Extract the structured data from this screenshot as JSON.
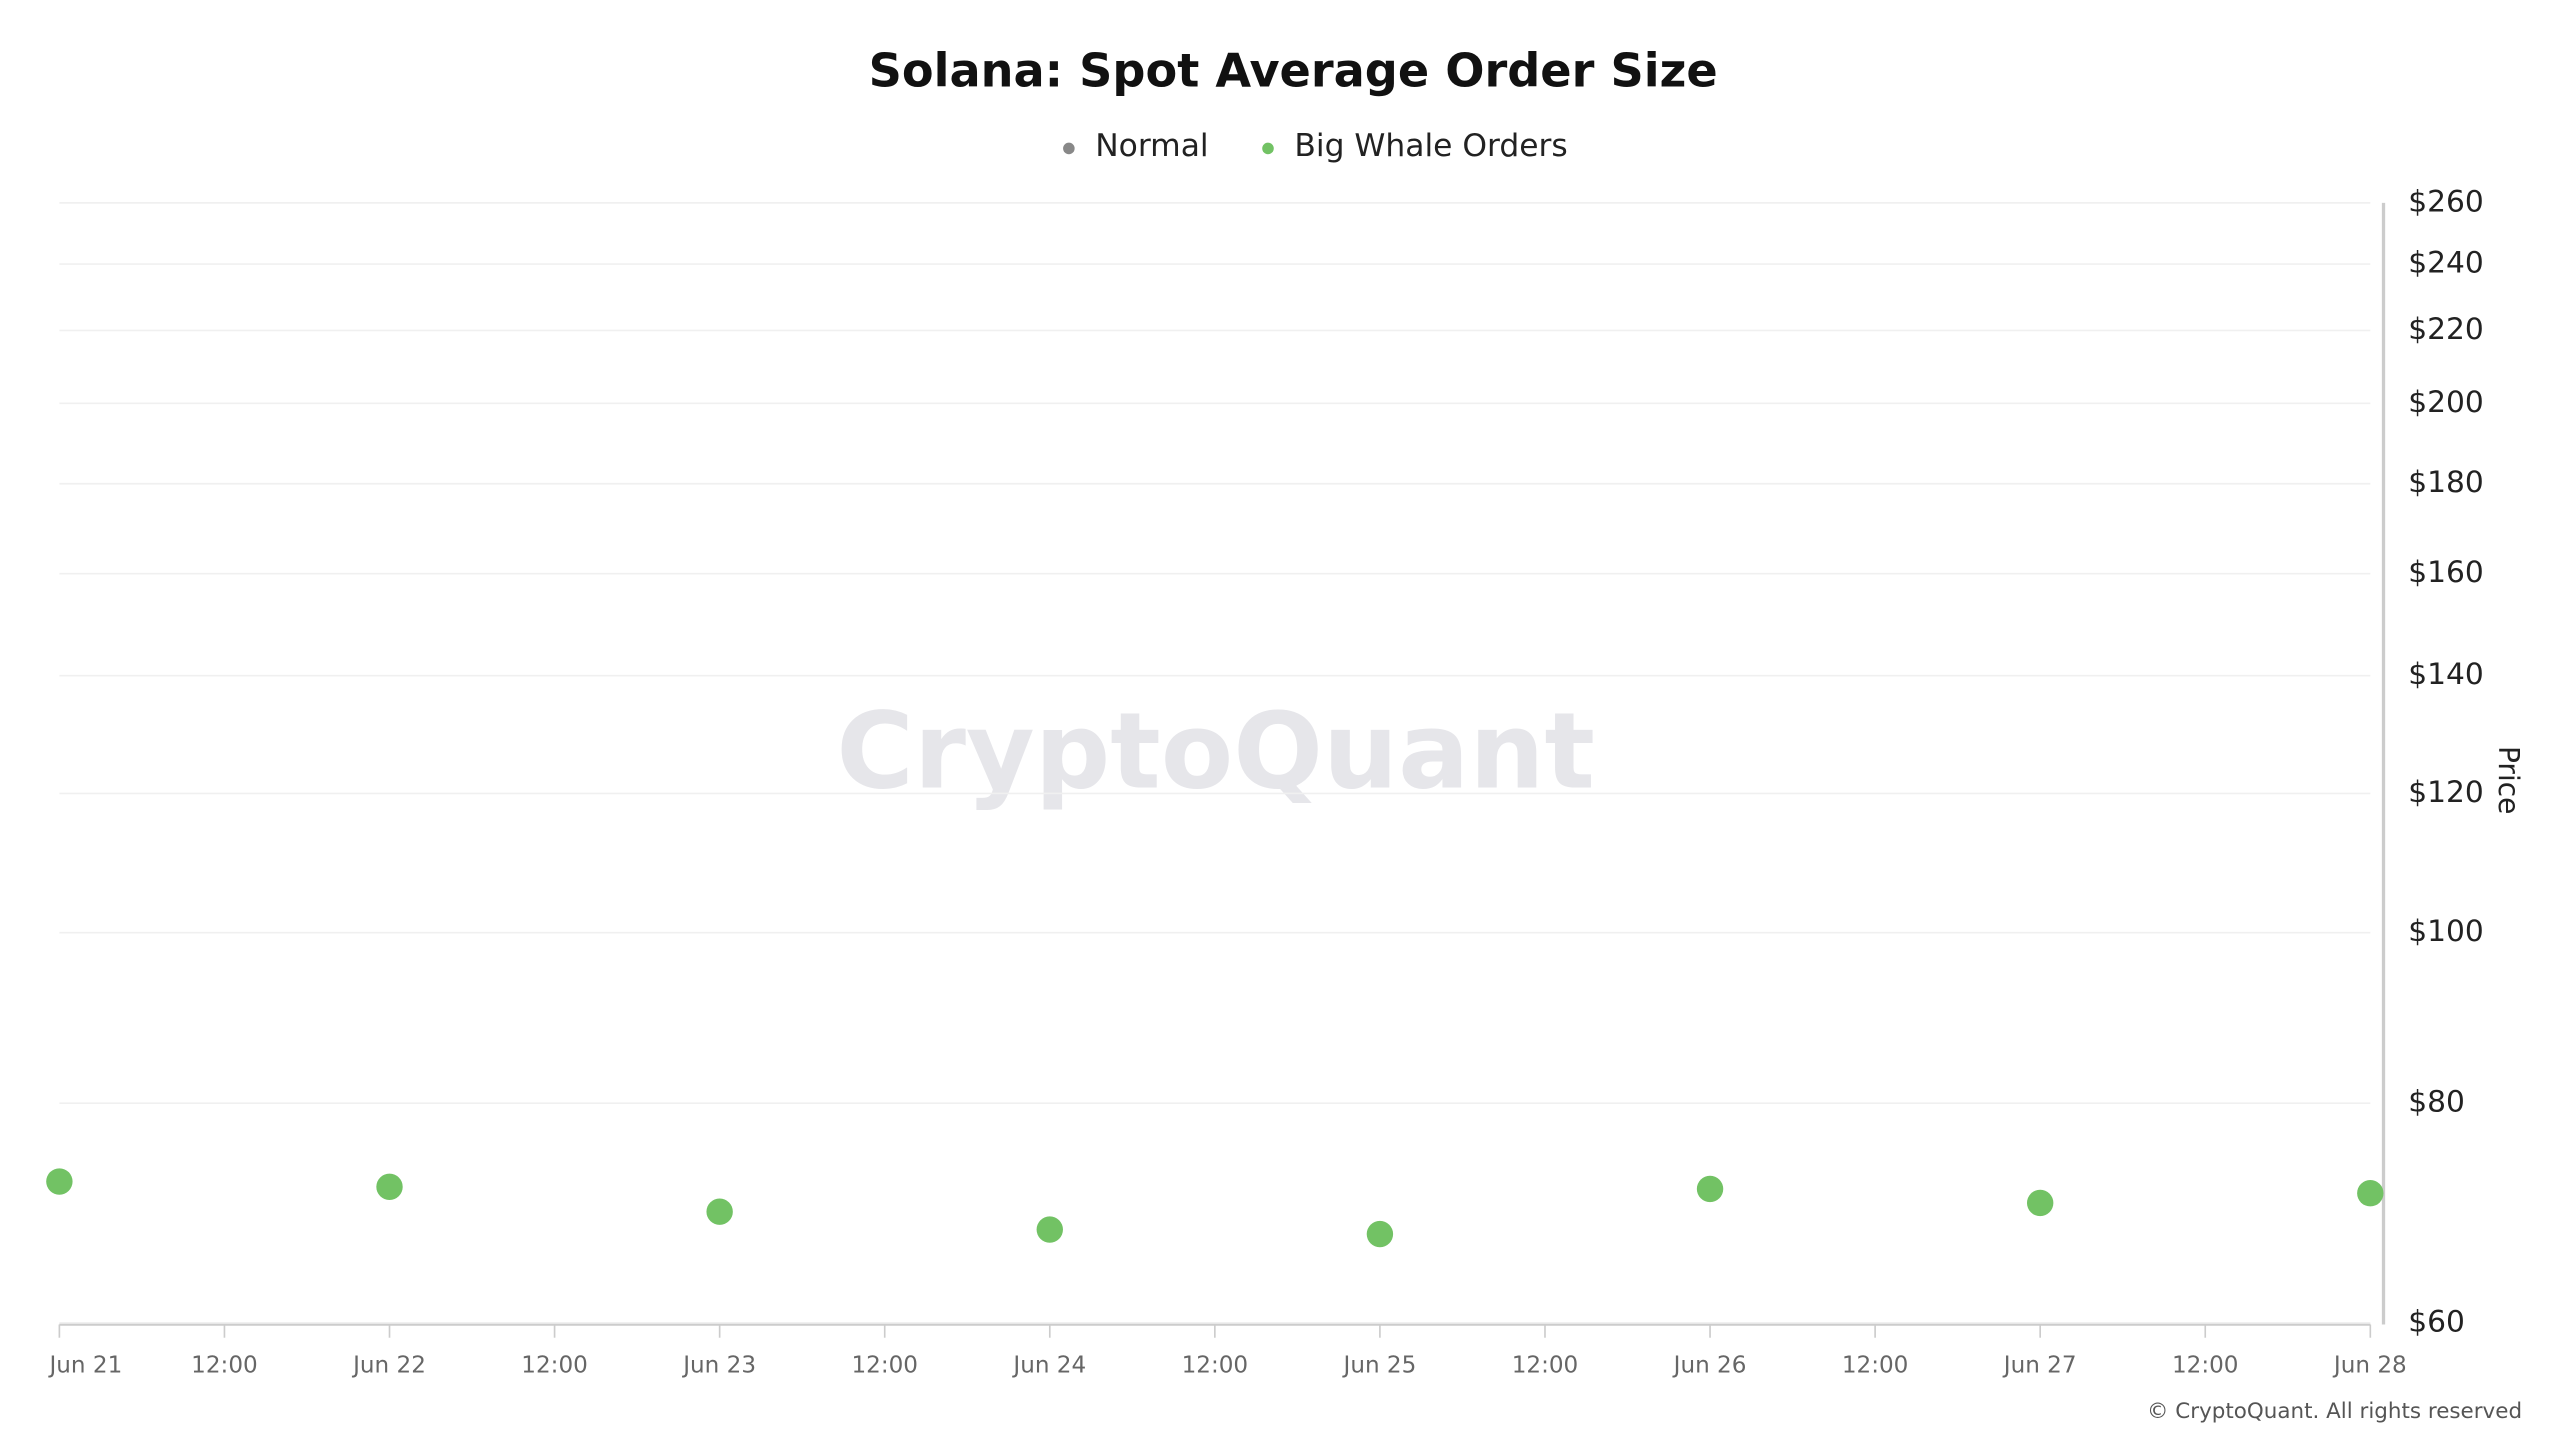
{
  "chart_data": {
    "type": "scatter",
    "title": "Solana: Spot Average Order Size",
    "categories": [
      "Jun 21",
      "12:00",
      "Jun 22",
      "12:00",
      "Jun 23",
      "12:00",
      "Jun 24",
      "12:00",
      "Jun 25",
      "12:00",
      "Jun 26",
      "12:00",
      "Jun 27",
      "12:00",
      "Jun 28"
    ],
    "series": [
      {
        "name": "Normal",
        "color": "#888888",
        "values": [
          null,
          null,
          null,
          null,
          null,
          null,
          null,
          null,
          null,
          null,
          null,
          null,
          null,
          null,
          null
        ]
      },
      {
        "name": "Big Whale Orders",
        "color": "#72c264",
        "values": [
          72.2,
          null,
          71.7,
          null,
          69.4,
          null,
          67.8,
          null,
          67.4,
          null,
          71.5,
          null,
          70.2,
          null,
          71.1
        ]
      }
    ],
    "y_label": "Price",
    "y_log": true,
    "ylim": [
      60,
      260
    ],
    "yticks": [
      {
        "value": 60,
        "label": "$60"
      },
      {
        "value": 80,
        "label": "$80"
      },
      {
        "value": 100,
        "label": "$100"
      },
      {
        "value": 120,
        "label": "$120"
      },
      {
        "value": 140,
        "label": "$140"
      },
      {
        "value": 160,
        "label": "$160"
      },
      {
        "value": 180,
        "label": "$180"
      },
      {
        "value": 200,
        "label": "$200"
      },
      {
        "value": 220,
        "label": "$220"
      },
      {
        "value": 240,
        "label": "$240"
      },
      {
        "value": 260,
        "label": "$260"
      }
    ],
    "grid": true,
    "watermark": "CryptoQuant",
    "footer": "© CryptoQuant. All rights reserved"
  }
}
